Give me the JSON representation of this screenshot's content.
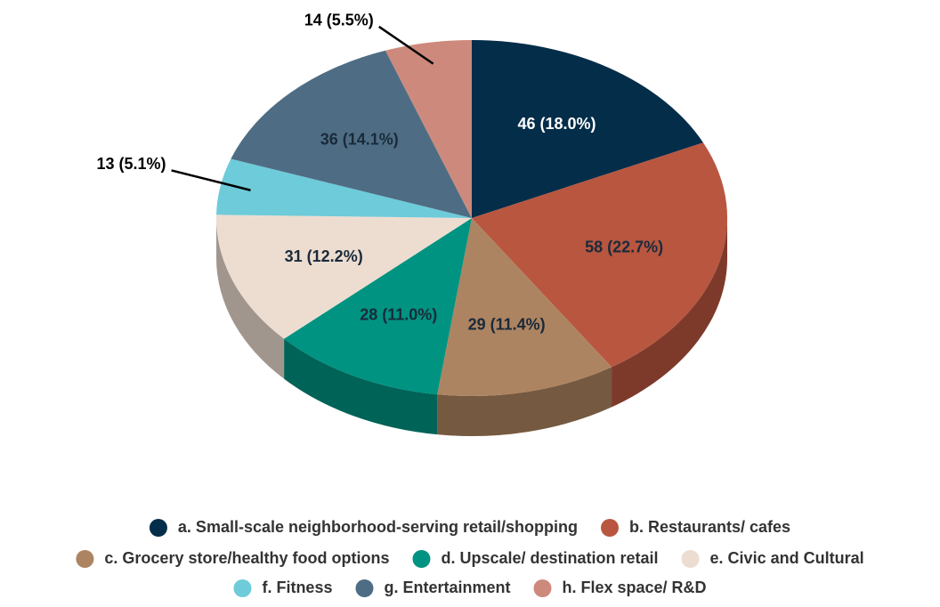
{
  "chart_data": {
    "type": "pie",
    "categories": [
      "a. Small-scale neighborhood-serving retail/shopping",
      "b. Restaurants/ cafes",
      "c. Grocery store/healthy food options",
      "d. Upscale/ destination retail",
      "e. Civic and Cultural",
      "f. Fitness",
      "g. Entertainment",
      "h. Flex space/ R&D"
    ],
    "values": [
      46,
      58,
      29,
      28,
      31,
      13,
      36,
      14
    ],
    "value_labels": [
      "46 (18.0%)",
      "58 (22.7%)",
      "29 (11.4%)",
      "28 (11.0%)",
      "31 (12.2%)",
      "13 (5.1%)",
      "36 (14.1%)",
      "14 (5.5%)"
    ],
    "colors": [
      "#032d49",
      "#b85640",
      "#ad8461",
      "#009381",
      "#edddd0",
      "#6ecbd9",
      "#4e6d84",
      "#cd8a7c"
    ],
    "legend": "bottom"
  }
}
